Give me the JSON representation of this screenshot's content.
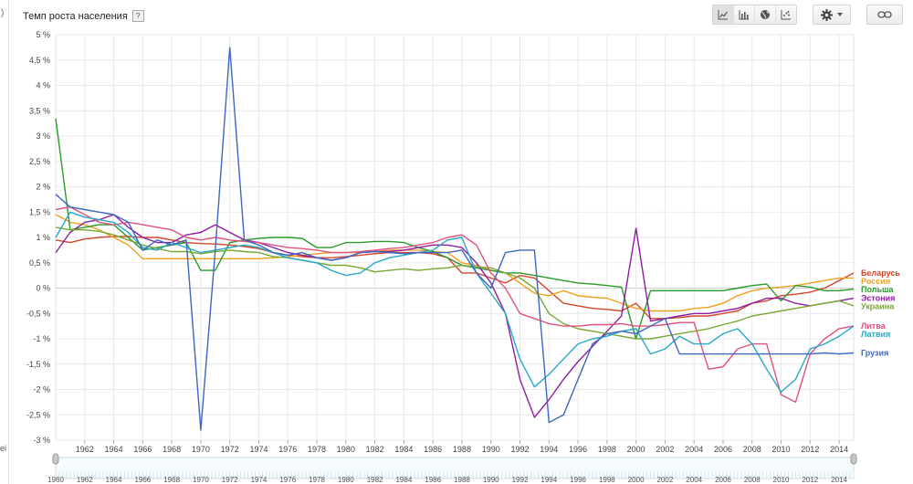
{
  "header": {
    "title": "Темп роста населения",
    "help_label": "?"
  },
  "toolbar": {
    "chart_types": [
      {
        "name": "line-chart",
        "active": true
      },
      {
        "name": "bar-chart",
        "active": false
      },
      {
        "name": "map",
        "active": false
      },
      {
        "name": "scatter-chart",
        "active": false
      }
    ],
    "settings_icon": "gear-icon",
    "link_icon": "link-icon"
  },
  "colors": {
    "Беларусь": "#d2452c",
    "Россия": "#f0a020",
    "Польша": "#2a9a2a",
    "Эстония": "#8e1da0",
    "Украина": "#78a832",
    "Литва": "#e0527c",
    "Латвия": "#27a8c8",
    "Грузия": "#3d67c2"
  },
  "chart_data": {
    "type": "line",
    "title": "Темп роста населения",
    "y_unit": "%",
    "ylim": [
      -3,
      5
    ],
    "y_ticks": [
      -3,
      -2.5,
      -2,
      -1.5,
      -1,
      -0.5,
      0,
      0.5,
      1,
      1.5,
      2,
      2.5,
      3,
      3.5,
      4,
      4.5,
      5
    ],
    "y_tick_labels": [
      "-3 %",
      "-2,5 %",
      "-2 %",
      "-1,5 %",
      "-1 %",
      "-0,5 %",
      "0 %",
      "0,5 %",
      "1 %",
      "1,5 %",
      "2 %",
      "2,5 %",
      "3 %",
      "3,5 %",
      "4 %",
      "4,5 %",
      "5 %"
    ],
    "xlim": [
      1960,
      2015
    ],
    "x_ticks": [
      1962,
      1964,
      1966,
      1968,
      1970,
      1972,
      1974,
      1976,
      1978,
      1980,
      1982,
      1984,
      1986,
      1988,
      1990,
      1992,
      1994,
      1996,
      1998,
      2000,
      2002,
      2004,
      2006,
      2008,
      2010,
      2012,
      2014
    ],
    "x_tick_labels": [
      "1962",
      "1964",
      "1966",
      "1968",
      "1970",
      "1972",
      "1974",
      "1976",
      "1978",
      "1980",
      "1982",
      "1984",
      "1986",
      "1988",
      "1990",
      "1992",
      "1994",
      "1996",
      "1998",
      "2000",
      "2002",
      "2004",
      "2006",
      "2008",
      "2010",
      "2012",
      "2014"
    ],
    "grid": true,
    "legend_position": "right, at line ends",
    "x": [
      1960,
      1961,
      1962,
      1963,
      1964,
      1965,
      1966,
      1967,
      1968,
      1969,
      1970,
      1971,
      1972,
      1973,
      1974,
      1975,
      1976,
      1977,
      1978,
      1979,
      1980,
      1981,
      1982,
      1983,
      1984,
      1985,
      1986,
      1987,
      1988,
      1989,
      1990,
      1991,
      1992,
      1993,
      1994,
      1995,
      1996,
      1997,
      1998,
      1999,
      2000,
      2001,
      2002,
      2003,
      2004,
      2005,
      2006,
      2007,
      2008,
      2009,
      2010,
      2011,
      2012,
      2013,
      2014,
      2015
    ],
    "series": [
      {
        "name": "Беларусь",
        "values": [
          0.95,
          0.9,
          0.97,
          1.0,
          1.02,
          1.02,
          1.0,
          1.0,
          0.95,
          0.9,
          0.88,
          0.87,
          0.85,
          0.82,
          0.78,
          0.7,
          0.65,
          0.62,
          0.6,
          0.6,
          0.62,
          0.65,
          0.68,
          0.7,
          0.7,
          0.7,
          0.68,
          0.6,
          0.3,
          0.3,
          0.2,
          0.1,
          0.25,
          0.2,
          -0.05,
          -0.3,
          -0.35,
          -0.4,
          -0.42,
          -0.45,
          -0.3,
          -0.6,
          -0.6,
          -0.58,
          -0.55,
          -0.55,
          -0.5,
          -0.45,
          -0.3,
          -0.25,
          -0.15,
          -0.12,
          -0.08,
          0.0,
          0.15,
          0.3
        ]
      },
      {
        "name": "Россия",
        "values": [
          1.45,
          1.3,
          1.25,
          1.15,
          1.0,
          0.85,
          0.58,
          0.58,
          0.58,
          0.58,
          0.58,
          0.58,
          0.58,
          0.58,
          0.58,
          0.6,
          0.62,
          0.65,
          0.68,
          0.7,
          0.7,
          0.7,
          0.72,
          0.75,
          0.75,
          0.75,
          0.72,
          0.7,
          0.5,
          0.45,
          0.35,
          0.3,
          0.1,
          -0.1,
          -0.15,
          -0.05,
          -0.15,
          -0.18,
          -0.2,
          -0.3,
          -0.4,
          -0.45,
          -0.45,
          -0.45,
          -0.4,
          -0.38,
          -0.3,
          -0.15,
          -0.05,
          0.0,
          0.02,
          0.05,
          0.1,
          0.15,
          0.2,
          0.2
        ]
      },
      {
        "name": "Польша",
        "values": [
          3.35,
          1.15,
          1.2,
          1.25,
          1.25,
          1.0,
          0.75,
          0.8,
          0.85,
          0.9,
          0.35,
          0.35,
          0.9,
          0.95,
          0.98,
          1.0,
          1.0,
          0.98,
          0.8,
          0.8,
          0.9,
          0.9,
          0.92,
          0.92,
          0.9,
          0.8,
          0.72,
          0.6,
          0.45,
          0.4,
          0.35,
          0.3,
          0.3,
          0.25,
          0.2,
          0.15,
          0.1,
          0.08,
          0.05,
          0.02,
          -1.0,
          -0.05,
          -0.05,
          -0.05,
          -0.05,
          -0.05,
          -0.05,
          0.0,
          0.05,
          0.08,
          -0.25,
          0.05,
          0.02,
          -0.05,
          -0.05,
          -0.02
        ]
      },
      {
        "name": "Эстония",
        "values": [
          0.7,
          1.1,
          1.3,
          1.35,
          1.45,
          1.2,
          1.0,
          0.9,
          0.9,
          1.05,
          1.1,
          1.25,
          1.1,
          0.95,
          0.9,
          0.8,
          0.7,
          0.65,
          0.6,
          0.55,
          0.6,
          0.7,
          0.72,
          0.72,
          0.75,
          0.8,
          0.85,
          0.85,
          0.8,
          0.5,
          0.1,
          -0.5,
          -1.8,
          -2.55,
          -2.2,
          -1.8,
          -1.45,
          -1.15,
          -0.85,
          -0.55,
          1.18,
          -0.65,
          -0.6,
          -0.55,
          -0.5,
          -0.5,
          -0.45,
          -0.4,
          -0.3,
          -0.2,
          -0.2,
          -0.3,
          -0.35,
          -0.3,
          -0.25,
          -0.2
        ]
      },
      {
        "name": "Украина",
        "values": [
          1.2,
          1.15,
          1.15,
          1.12,
          1.05,
          0.95,
          0.85,
          0.78,
          0.72,
          0.72,
          0.68,
          0.72,
          0.75,
          0.72,
          0.7,
          0.62,
          0.6,
          0.55,
          0.5,
          0.45,
          0.45,
          0.4,
          0.32,
          0.35,
          0.38,
          0.35,
          0.38,
          0.4,
          0.45,
          0.42,
          0.4,
          0.3,
          0.2,
          0.0,
          -0.5,
          -0.7,
          -0.8,
          -0.85,
          -0.9,
          -0.95,
          -1.0,
          -1.0,
          -0.95,
          -0.9,
          -0.85,
          -0.8,
          -0.72,
          -0.65,
          -0.55,
          -0.5,
          -0.45,
          -0.4,
          -0.35,
          -0.3,
          -0.25,
          -0.35
        ]
      },
      {
        "name": "Литва",
        "values": [
          1.55,
          1.6,
          1.45,
          1.3,
          1.25,
          1.3,
          1.25,
          1.2,
          1.15,
          1.0,
          0.95,
          1.0,
          0.95,
          0.92,
          0.9,
          0.85,
          0.8,
          0.78,
          0.75,
          0.7,
          0.7,
          0.72,
          0.75,
          0.78,
          0.8,
          0.85,
          0.9,
          1.0,
          1.05,
          0.85,
          0.3,
          0.0,
          -0.5,
          -0.6,
          -0.7,
          -0.75,
          -0.75,
          -0.72,
          -0.72,
          -0.7,
          -0.75,
          -0.75,
          -0.72,
          -0.68,
          -0.68,
          -1.6,
          -1.55,
          -1.2,
          -1.1,
          -1.1,
          -2.1,
          -2.25,
          -1.3,
          -1.0,
          -0.8,
          -0.75
        ]
      },
      {
        "name": "Латвия",
        "values": [
          1.0,
          1.5,
          1.4,
          1.35,
          1.3,
          1.1,
          0.8,
          0.75,
          0.9,
          0.8,
          0.7,
          0.75,
          0.8,
          0.85,
          0.8,
          0.7,
          0.6,
          0.55,
          0.5,
          0.35,
          0.25,
          0.3,
          0.5,
          0.6,
          0.65,
          0.7,
          0.75,
          0.95,
          1.0,
          0.3,
          -0.1,
          -0.5,
          -1.4,
          -1.95,
          -1.7,
          -1.4,
          -1.1,
          -1.0,
          -0.95,
          -0.85,
          -0.8,
          -1.3,
          -1.2,
          -0.95,
          -1.1,
          -1.1,
          -0.9,
          -0.8,
          -1.1,
          -1.6,
          -2.05,
          -1.8,
          -1.2,
          -1.1,
          -0.95,
          -0.75
        ]
      },
      {
        "name": "Грузия",
        "values": [
          1.85,
          1.6,
          1.55,
          1.5,
          1.45,
          1.3,
          0.75,
          0.95,
          0.85,
          0.95,
          -2.8,
          0.75,
          4.75,
          0.95,
          0.85,
          0.7,
          0.65,
          0.7,
          0.6,
          0.55,
          0.6,
          0.7,
          0.72,
          0.7,
          0.68,
          0.7,
          0.7,
          0.7,
          0.75,
          0.3,
          0.0,
          0.7,
          0.75,
          0.75,
          -2.65,
          -2.5,
          -1.8,
          -1.1,
          -0.9,
          -0.85,
          -0.9,
          -0.75,
          -0.6,
          -1.3,
          -1.3,
          -1.3,
          -1.3,
          -1.3,
          -1.3,
          -1.3,
          -1.3,
          -1.3,
          -1.3,
          -1.28,
          -1.3,
          -1.28
        ]
      }
    ],
    "navigator": {
      "tick_labels": [
        "1960",
        "1962",
        "1964",
        "1966",
        "1968",
        "1970",
        "1972",
        "1974",
        "1976",
        "1978",
        "1980",
        "1982",
        "1984",
        "1986",
        "1988",
        "1990",
        "1992",
        "1994",
        "1996",
        "1998",
        "2000",
        "2002",
        "2004",
        "2006",
        "2008",
        "2010",
        "2012",
        "2014"
      ],
      "tick_values": [
        1960,
        1962,
        1964,
        1966,
        1968,
        1970,
        1972,
        1974,
        1976,
        1978,
        1980,
        1982,
        1984,
        1986,
        1988,
        1990,
        1992,
        1994,
        1996,
        1998,
        2000,
        2002,
        2004,
        2006,
        2008,
        2010,
        2012,
        2014
      ]
    }
  },
  "side_glyphs": {
    "top": ")",
    "bottom": "ei"
  }
}
